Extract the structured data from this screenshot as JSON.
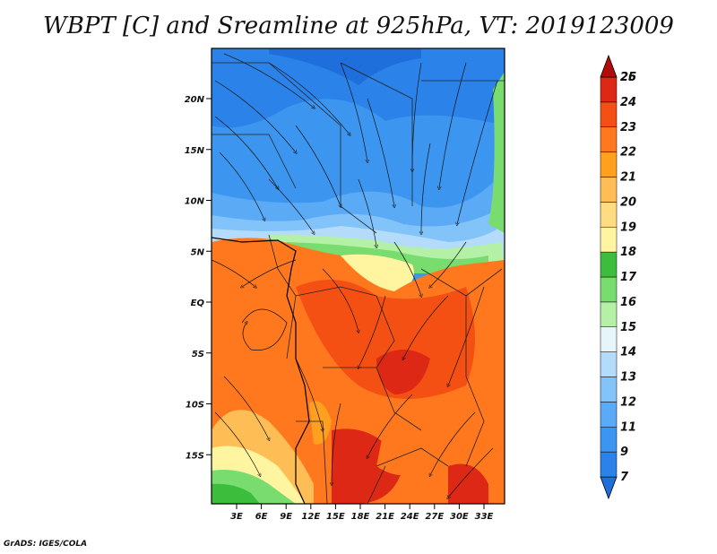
{
  "title": "WBPT [C] and Sreamline at 925hPa, VT: 2019123009",
  "credit": "GrADS: IGES/COLA",
  "map": {
    "lat_ticks": [
      {
        "value": 20,
        "label": "20N"
      },
      {
        "value": 15,
        "label": "15N"
      },
      {
        "value": 10,
        "label": "10N"
      },
      {
        "value": 5,
        "label": "5N"
      },
      {
        "value": 0,
        "label": "EQ"
      },
      {
        "value": -5,
        "label": "5S"
      },
      {
        "value": -10,
        "label": "10S"
      },
      {
        "value": -15,
        "label": "15S"
      }
    ],
    "lon_ticks": [
      {
        "value": 3,
        "label": "3E"
      },
      {
        "value": 6,
        "label": "6E"
      },
      {
        "value": 9,
        "label": "9E"
      },
      {
        "value": 12,
        "label": "12E"
      },
      {
        "value": 15,
        "label": "15E"
      },
      {
        "value": 18,
        "label": "18E"
      },
      {
        "value": 21,
        "label": "21E"
      },
      {
        "value": 24,
        "label": "24E"
      },
      {
        "value": 27,
        "label": "27E"
      },
      {
        "value": 30,
        "label": "30E"
      },
      {
        "value": 33,
        "label": "33E"
      }
    ]
  },
  "colorbar": {
    "levels": [
      "7",
      "9",
      "11",
      "12",
      "13",
      "14",
      "15",
      "16",
      "17",
      "18",
      "19",
      "20",
      "21",
      "22",
      "23",
      "24",
      "25",
      "26"
    ],
    "colors": [
      "#1e6edc",
      "#2b82e8",
      "#3c96f0",
      "#5aaaf5",
      "#82c3fa",
      "#b4dcfa",
      "#e6f5fa",
      "#b4f0a5",
      "#78dc6e",
      "#3cbe3c",
      "#fff5a0",
      "#ffdc82",
      "#ffbe55",
      "#ffa01e",
      "#ff781e",
      "#f55014",
      "#dc2814",
      "#b40a0a"
    ]
  }
}
